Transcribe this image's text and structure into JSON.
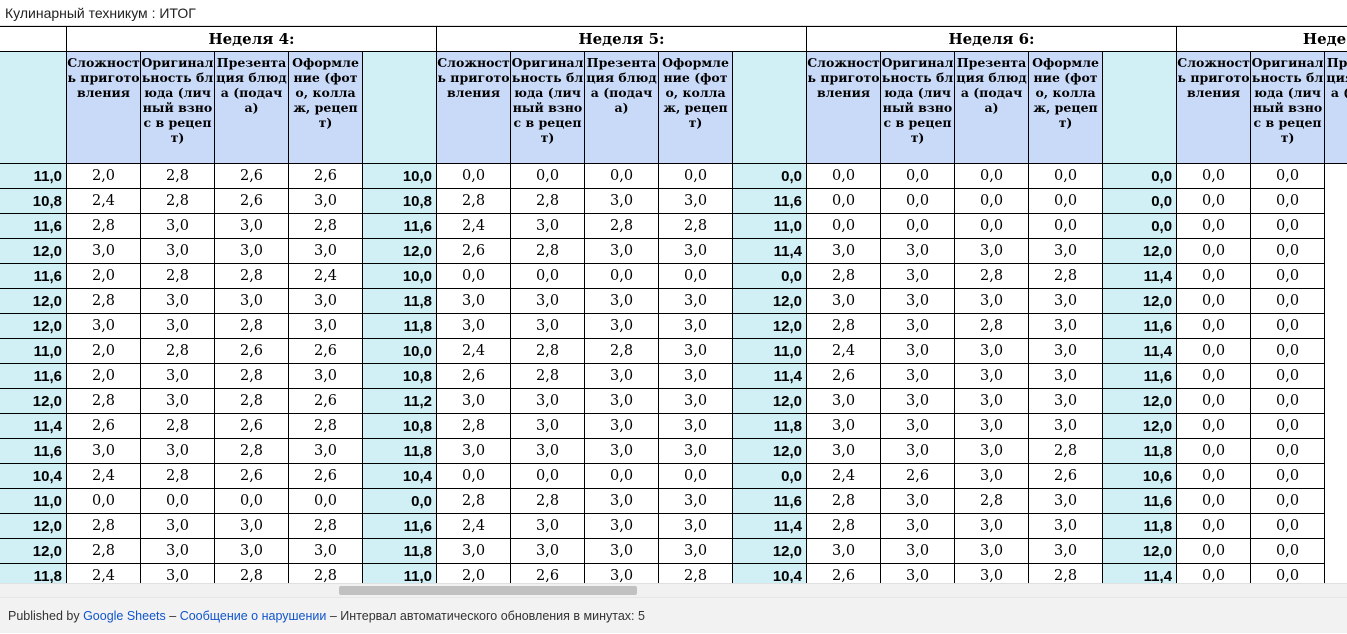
{
  "doc_title": "Кулинарный техникум : ИТОГ",
  "weeks": [
    {
      "label": "Неделя 4:"
    },
    {
      "label": "Неделя 5:"
    },
    {
      "label": "Неделя 6:"
    },
    {
      "label": "Неде"
    }
  ],
  "criteria": [
    "Сложность приготовления",
    "Оригинальность блюда (личный взнос в рецепт)",
    "Презентация блюда (подача)",
    "Оформление (фото, коллаж, рецепт)"
  ],
  "rows": [
    [
      "11,0",
      "2,0",
      "2,8",
      "2,6",
      "2,6",
      "10,0",
      "0,0",
      "0,0",
      "0,0",
      "0,0",
      "0,0",
      "0,0",
      "0,0",
      "0,0",
      "0,0",
      "0,0",
      "0,0",
      "0,0"
    ],
    [
      "10,8",
      "2,4",
      "2,8",
      "2,6",
      "3,0",
      "10,8",
      "2,8",
      "2,8",
      "3,0",
      "3,0",
      "11,6",
      "0,0",
      "0,0",
      "0,0",
      "0,0",
      "0,0",
      "0,0",
      "0,0"
    ],
    [
      "11,6",
      "2,8",
      "3,0",
      "3,0",
      "2,8",
      "11,6",
      "2,4",
      "3,0",
      "2,8",
      "2,8",
      "11,0",
      "0,0",
      "0,0",
      "0,0",
      "0,0",
      "0,0",
      "0,0",
      "0,0"
    ],
    [
      "12,0",
      "3,0",
      "3,0",
      "3,0",
      "3,0",
      "12,0",
      "2,6",
      "2,8",
      "3,0",
      "3,0",
      "11,4",
      "3,0",
      "3,0",
      "3,0",
      "3,0",
      "12,0",
      "0,0",
      "0,0"
    ],
    [
      "11,6",
      "2,0",
      "2,8",
      "2,8",
      "2,4",
      "10,0",
      "0,0",
      "0,0",
      "0,0",
      "0,0",
      "0,0",
      "2,8",
      "3,0",
      "2,8",
      "2,8",
      "11,4",
      "0,0",
      "0,0"
    ],
    [
      "12,0",
      "2,8",
      "3,0",
      "3,0",
      "3,0",
      "11,8",
      "3,0",
      "3,0",
      "3,0",
      "3,0",
      "12,0",
      "3,0",
      "3,0",
      "3,0",
      "3,0",
      "12,0",
      "0,0",
      "0,0"
    ],
    [
      "12,0",
      "3,0",
      "3,0",
      "2,8",
      "3,0",
      "11,8",
      "3,0",
      "3,0",
      "3,0",
      "3,0",
      "12,0",
      "2,8",
      "3,0",
      "2,8",
      "3,0",
      "11,6",
      "0,0",
      "0,0"
    ],
    [
      "11,0",
      "2,0",
      "2,8",
      "2,6",
      "2,6",
      "10,0",
      "2,4",
      "2,8",
      "2,8",
      "3,0",
      "11,0",
      "2,4",
      "3,0",
      "3,0",
      "3,0",
      "11,4",
      "0,0",
      "0,0"
    ],
    [
      "11,6",
      "2,0",
      "3,0",
      "2,8",
      "3,0",
      "10,8",
      "2,6",
      "2,8",
      "3,0",
      "3,0",
      "11,4",
      "2,6",
      "3,0",
      "3,0",
      "3,0",
      "11,6",
      "0,0",
      "0,0"
    ],
    [
      "12,0",
      "2,8",
      "3,0",
      "2,8",
      "2,6",
      "11,2",
      "3,0",
      "3,0",
      "3,0",
      "3,0",
      "12,0",
      "3,0",
      "3,0",
      "3,0",
      "3,0",
      "12,0",
      "0,0",
      "0,0"
    ],
    [
      "11,4",
      "2,6",
      "2,8",
      "2,6",
      "2,8",
      "10,8",
      "2,8",
      "3,0",
      "3,0",
      "3,0",
      "11,8",
      "3,0",
      "3,0",
      "3,0",
      "3,0",
      "12,0",
      "0,0",
      "0,0"
    ],
    [
      "11,6",
      "3,0",
      "3,0",
      "2,8",
      "3,0",
      "11,8",
      "3,0",
      "3,0",
      "3,0",
      "3,0",
      "12,0",
      "3,0",
      "3,0",
      "3,0",
      "2,8",
      "11,8",
      "0,0",
      "0,0"
    ],
    [
      "10,4",
      "2,4",
      "2,8",
      "2,6",
      "2,6",
      "10,4",
      "0,0",
      "0,0",
      "0,0",
      "0,0",
      "0,0",
      "2,4",
      "2,6",
      "3,0",
      "2,6",
      "10,6",
      "0,0",
      "0,0"
    ],
    [
      "11,0",
      "0,0",
      "0,0",
      "0,0",
      "0,0",
      "0,0",
      "2,8",
      "2,8",
      "3,0",
      "3,0",
      "11,6",
      "2,8",
      "3,0",
      "2,8",
      "3,0",
      "11,6",
      "0,0",
      "0,0"
    ],
    [
      "12,0",
      "2,8",
      "3,0",
      "3,0",
      "2,8",
      "11,6",
      "2,4",
      "3,0",
      "3,0",
      "3,0",
      "11,4",
      "2,8",
      "3,0",
      "3,0",
      "3,0",
      "11,8",
      "0,0",
      "0,0"
    ],
    [
      "12,0",
      "2,8",
      "3,0",
      "3,0",
      "3,0",
      "11,8",
      "3,0",
      "3,0",
      "3,0",
      "3,0",
      "12,0",
      "3,0",
      "3,0",
      "3,0",
      "3,0",
      "12,0",
      "0,0",
      "0,0"
    ],
    [
      "11,8",
      "2,4",
      "3,0",
      "2,8",
      "2,8",
      "11,0",
      "2,0",
      "2,6",
      "3,0",
      "2,8",
      "10,4",
      "2,6",
      "3,0",
      "3,0",
      "2,8",
      "11,4",
      "0,0",
      "0,0"
    ]
  ],
  "footer": {
    "published_by": "Published by",
    "google_sheets": "Google Sheets",
    "sep1": "–",
    "report_abuse": "Сообщение о нарушении",
    "sep2": "–",
    "refresh_text": "Интервал автоматического обновления в минутах: 5"
  }
}
